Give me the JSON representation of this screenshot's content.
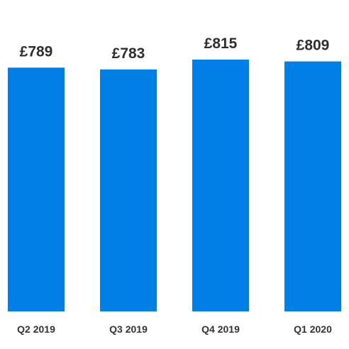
{
  "chart_data": {
    "type": "bar",
    "categories": [
      "Q2 2019",
      "Q3 2019",
      "Q4 2019",
      "Q1 2020"
    ],
    "values": [
      789,
      783,
      815,
      809
    ],
    "value_labels": [
      "£789",
      "£783",
      "£815",
      "£809"
    ],
    "title": "",
    "xlabel": "",
    "ylabel": "",
    "ylim": [
      0,
      860
    ],
    "grid": false,
    "legend": "none",
    "bar_color": "#0080e6"
  }
}
